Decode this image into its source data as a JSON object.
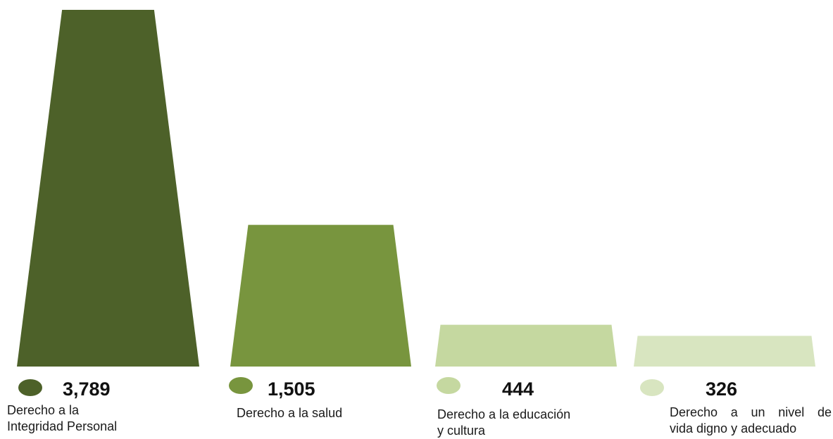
{
  "chart_data": {
    "type": "bar",
    "title": "",
    "xlabel": "",
    "ylabel": "",
    "ylim": [
      0,
      3789
    ],
    "grid": false,
    "legend": "none",
    "categories": [
      [
        "Derecho a la",
        "Integridad Personal"
      ],
      [
        "Derecho a la salud"
      ],
      [
        "Derecho a la educación",
        "y cultura"
      ],
      [
        "Derecho  a  un  nivel  de",
        "vida digno y adecuado"
      ]
    ],
    "values": [
      3789,
      1505,
      444,
      326
    ],
    "value_labels": [
      "3,789",
      "1,505",
      "444",
      "326"
    ],
    "colors": [
      "#4d6129",
      "#78953e",
      "#c5d8a0",
      "#d8e5c0"
    ]
  }
}
